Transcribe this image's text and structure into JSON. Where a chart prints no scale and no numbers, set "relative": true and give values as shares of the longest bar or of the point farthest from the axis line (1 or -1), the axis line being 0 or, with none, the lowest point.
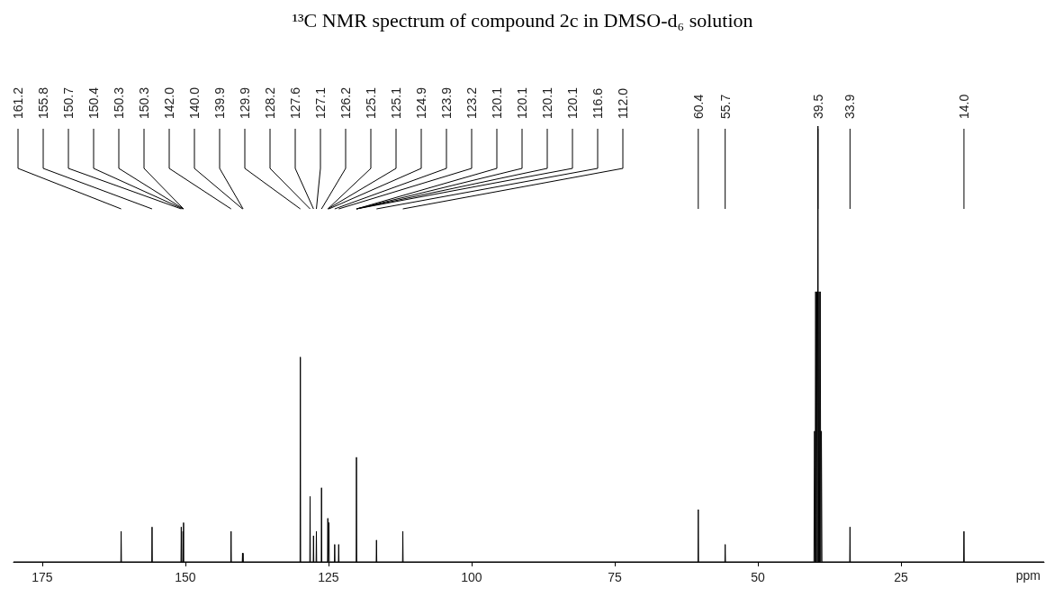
{
  "chart_data": {
    "type": "line",
    "title": "¹³C NMR spectrum of compound 2c in DMSO-d₆ solution",
    "xlabel": "ppm",
    "relative": true,
    "color": "#000000",
    "marker": "none",
    "grid": false,
    "xlim": [
      180,
      0
    ],
    "xticks": [
      175,
      150,
      125,
      100,
      75,
      50,
      25
    ],
    "x": [
      180,
      161.25,
      161.2,
      161.15,
      155.85,
      155.8,
      155.75,
      150.75,
      150.7,
      150.65,
      150.44,
      150.4,
      150.36,
      150.34,
      150.3,
      150.26,
      142.05,
      142.0,
      141.95,
      140.04,
      140.0,
      139.96,
      139.94,
      139.9,
      139.86,
      129.95,
      129.9,
      129.85,
      128.25,
      128.2,
      128.15,
      127.65,
      127.6,
      127.55,
      127.15,
      127.1,
      127.05,
      126.25,
      126.2,
      126.15,
      125.15,
      125.1,
      125.05,
      124.95,
      124.9,
      124.85,
      123.95,
      123.9,
      123.85,
      123.25,
      123.2,
      123.15,
      120.15,
      120.1,
      120.05,
      116.65,
      116.6,
      116.55,
      112.05,
      112.0,
      111.95,
      60.45,
      60.4,
      60.35,
      55.75,
      55.7,
      55.65,
      40.2,
      40.1,
      40.0,
      39.9,
      39.8,
      39.7,
      39.6,
      39.5,
      39.4,
      39.3,
      39.2,
      39.1,
      39.0,
      38.9,
      38.8,
      33.95,
      33.9,
      33.85,
      14.05,
      14.0,
      13.95,
      0
    ],
    "values": [
      0,
      0,
      0.07,
      0,
      0,
      0.08,
      0,
      0,
      0.08,
      0,
      0,
      0.07,
      0,
      0,
      0.09,
      0,
      0,
      0.07,
      0,
      0,
      0.02,
      0,
      0,
      0.02,
      0,
      0,
      0.47,
      0,
      0,
      0.15,
      0,
      0,
      0.06,
      0,
      0,
      0.07,
      0,
      0,
      0.17,
      0,
      0,
      0.1,
      0,
      0,
      0.09,
      0,
      0,
      0.04,
      0,
      0,
      0.04,
      0,
      0,
      0.24,
      0,
      0,
      0.05,
      0,
      0,
      0.07,
      0,
      0,
      0.12,
      0,
      0,
      0.04,
      0,
      0,
      0.3,
      0,
      0.62,
      0,
      0.62,
      0,
      1,
      0,
      0.62,
      0,
      0.62,
      0,
      0.3,
      0,
      0,
      0.08,
      0,
      0,
      0.07,
      0,
      0
    ],
    "annotations": [
      {
        "text": "161.2",
        "x": 161.2
      },
      {
        "text": "155.8",
        "x": 155.8
      },
      {
        "text": "150.7",
        "x": 150.7
      },
      {
        "text": "150.4",
        "x": 150.4
      },
      {
        "text": "150.3",
        "x": 150.3
      },
      {
        "text": "150.3",
        "x": 150.3
      },
      {
        "text": "142.0",
        "x": 142.0
      },
      {
        "text": "140.0",
        "x": 140.0
      },
      {
        "text": "139.9",
        "x": 139.9
      },
      {
        "text": "129.9",
        "x": 129.9
      },
      {
        "text": "128.2",
        "x": 128.2
      },
      {
        "text": "127.6",
        "x": 127.6
      },
      {
        "text": "127.1",
        "x": 127.1
      },
      {
        "text": "126.2",
        "x": 126.2
      },
      {
        "text": "125.1",
        "x": 125.1
      },
      {
        "text": "125.1",
        "x": 125.1
      },
      {
        "text": "124.9",
        "x": 124.9
      },
      {
        "text": "123.9",
        "x": 123.9
      },
      {
        "text": "123.2",
        "x": 123.2
      },
      {
        "text": "120.1",
        "x": 120.1
      },
      {
        "text": "120.1",
        "x": 120.1
      },
      {
        "text": "120.1",
        "x": 120.1
      },
      {
        "text": "120.1",
        "x": 120.1
      },
      {
        "text": "116.6",
        "x": 116.6
      },
      {
        "text": "112.0",
        "x": 112.0
      },
      {
        "text": "60.4",
        "x": 60.4
      },
      {
        "text": "55.7",
        "x": 55.7
      },
      {
        "text": "39.5",
        "x": 39.5
      },
      {
        "text": "33.9",
        "x": 33.9
      },
      {
        "text": "14.0",
        "x": 14.0
      }
    ]
  }
}
